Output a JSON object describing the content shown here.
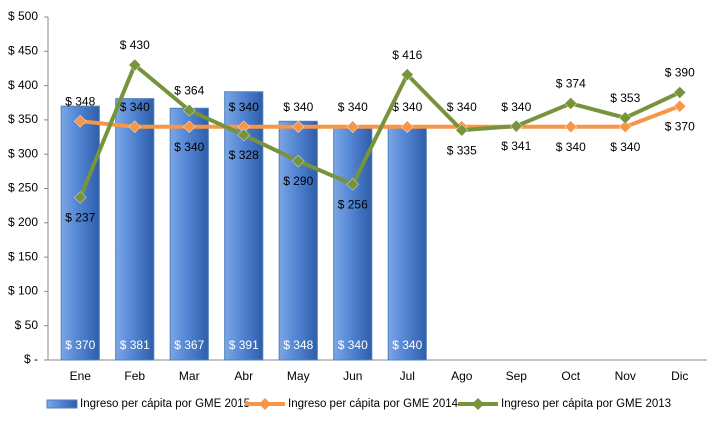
{
  "chart_data": {
    "type": "bar",
    "categories": [
      "Ene",
      "Feb",
      "Mar",
      "Abr",
      "May",
      "Jun",
      "Jul",
      "Ago",
      "Sep",
      "Oct",
      "Nov",
      "Dic"
    ],
    "ylim": [
      0,
      500
    ],
    "yticks": [
      {
        "value": 0,
        "label": "$ -"
      },
      {
        "value": 50,
        "label": "$ 50"
      },
      {
        "value": 100,
        "label": "$ 100"
      },
      {
        "value": 150,
        "label": "$ 150"
      },
      {
        "value": 200,
        "label": "$ 200"
      },
      {
        "value": 250,
        "label": "$ 250"
      },
      {
        "value": 300,
        "label": "$ 300"
      },
      {
        "value": 350,
        "label": "$ 350"
      },
      {
        "value": 400,
        "label": "$ 400"
      },
      {
        "value": 450,
        "label": "$ 450"
      },
      {
        "value": 500,
        "label": "$ 500"
      }
    ],
    "grid": false,
    "legend": "bottom",
    "series": [
      {
        "name": "Ingreso per cápita por GME 2015",
        "type": "bar",
        "color": "#4f81bd",
        "values": [
          370,
          381,
          367,
          391,
          348,
          340,
          340,
          null,
          null,
          null,
          null,
          null
        ],
        "value_labels": [
          "$ 370",
          "$ 381",
          "$ 367",
          "$ 391",
          "$ 348",
          "$ 340",
          "$ 340",
          null,
          null,
          null,
          null,
          null
        ]
      },
      {
        "name": "Ingreso per cápita por GME 2014",
        "type": "line",
        "color": "#f79646",
        "values": [
          348,
          340,
          340,
          340,
          340,
          340,
          340,
          340,
          340,
          340,
          340,
          370
        ],
        "value_labels": [
          "$ 348",
          "$ 340",
          "$ 340",
          "$ 340",
          "$ 340",
          "$ 340",
          "$ 340",
          "$ 340",
          "$ 340",
          "$ 340",
          "$ 340",
          "$ 370"
        ]
      },
      {
        "name": "Ingreso per cápita por GME 2013",
        "type": "line",
        "color": "#77933c",
        "values": [
          237,
          430,
          364,
          328,
          290,
          256,
          416,
          335,
          341,
          374,
          353,
          390
        ],
        "value_labels": [
          "$ 237",
          "$ 430",
          "$ 364",
          "$ 328",
          "$ 290",
          "$ 256",
          "$ 416",
          "$ 335",
          "$ 341",
          "$ 374",
          "$ 353",
          "$ 390"
        ]
      }
    ]
  }
}
